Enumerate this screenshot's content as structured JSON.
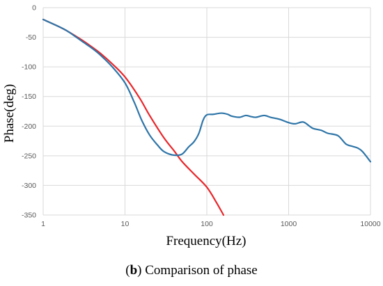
{
  "chart_data": {
    "type": "line",
    "title": "",
    "xlabel": "Frequency(Hz)",
    "ylabel": "Phase(deg)",
    "xscale": "log",
    "xlim": [
      1,
      10000
    ],
    "ylim": [
      -350,
      0
    ],
    "grid": "y-major",
    "x_ticks": [
      "1",
      "10",
      "100",
      "1000",
      "10000"
    ],
    "y_ticks": [
      "0",
      "-50",
      "-100",
      "-150",
      "-200",
      "-250",
      "-300",
      "-350"
    ],
    "legend": "none",
    "series": [
      {
        "color": "#e8262a",
        "points": [
          [
            1,
            -20
          ],
          [
            1.5,
            -31
          ],
          [
            2,
            -40
          ],
          [
            3,
            -55
          ],
          [
            4,
            -67
          ],
          [
            5,
            -77
          ],
          [
            7,
            -95
          ],
          [
            10,
            -117
          ],
          [
            15,
            -152
          ],
          [
            20,
            -182
          ],
          [
            30,
            -220
          ],
          [
            40,
            -242
          ],
          [
            50,
            -260
          ],
          [
            70,
            -281
          ],
          [
            100,
            -303
          ],
          [
            130,
            -328
          ],
          [
            160,
            -350
          ]
        ]
      },
      {
        "color": "#2e75a8",
        "points": [
          [
            1,
            -20
          ],
          [
            1.5,
            -31
          ],
          [
            2,
            -40
          ],
          [
            3,
            -57
          ],
          [
            4,
            -69
          ],
          [
            5,
            -80
          ],
          [
            7,
            -100
          ],
          [
            10,
            -127
          ],
          [
            13,
            -160
          ],
          [
            16,
            -190
          ],
          [
            20,
            -215
          ],
          [
            25,
            -232
          ],
          [
            30,
            -243
          ],
          [
            40,
            -249
          ],
          [
            50,
            -247
          ],
          [
            60,
            -235
          ],
          [
            70,
            -226
          ],
          [
            80,
            -212
          ],
          [
            90,
            -190
          ],
          [
            100,
            -181
          ],
          [
            120,
            -180
          ],
          [
            150,
            -178
          ],
          [
            180,
            -180
          ],
          [
            200,
            -183
          ],
          [
            250,
            -185
          ],
          [
            300,
            -182
          ],
          [
            350,
            -184
          ],
          [
            400,
            -185
          ],
          [
            500,
            -182
          ],
          [
            600,
            -185
          ],
          [
            700,
            -187
          ],
          [
            800,
            -189
          ],
          [
            1000,
            -194
          ],
          [
            1200,
            -196
          ],
          [
            1500,
            -193
          ],
          [
            1800,
            -200
          ],
          [
            2000,
            -204
          ],
          [
            2500,
            -207
          ],
          [
            3000,
            -212
          ],
          [
            4000,
            -216
          ],
          [
            5000,
            -230
          ],
          [
            6000,
            -234
          ],
          [
            7000,
            -237
          ],
          [
            8000,
            -243
          ],
          [
            10000,
            -260
          ]
        ]
      }
    ]
  },
  "caption": {
    "prefix": "(",
    "bold": "b",
    "rest": ") Comparison of phase"
  }
}
